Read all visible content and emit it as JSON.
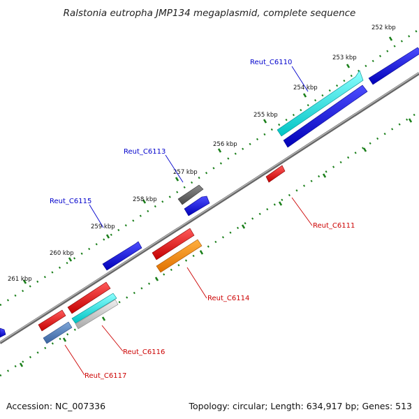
{
  "title": "Ralstonia eutropha JMP134 megaplasmid, complete sequence",
  "footer": {
    "accession": "Accession: NC_007336",
    "summary": "Topology: circular; Length: 634,917 bp; Genes: 513"
  },
  "colors": {
    "backbone": "#888888",
    "tick": "#1a7f1a",
    "label_forward": "#0000cc",
    "label_reverse": "#cc0000",
    "blue": "#0000dd",
    "red": "#ee0000",
    "cyan": "#00e5e5",
    "gray": "#666666",
    "orange": "#ff8c00",
    "steelblue": "#4a7ab8",
    "silver": "#c8c8c8"
  },
  "tick_labels": [
    "252 kbp",
    "253 kbp",
    "254 kbp",
    "255 kbp",
    "256 kbp",
    "257 kbp",
    "258 kbp",
    "259 kbp",
    "260 kbp",
    "261 kbp"
  ],
  "gene_labels": [
    "Reut_C6110",
    "Reut_C6113",
    "Reut_C6115",
    "Reut_C6111",
    "Reut_C6114",
    "Reut_C6116",
    "Reut_C6117"
  ]
}
